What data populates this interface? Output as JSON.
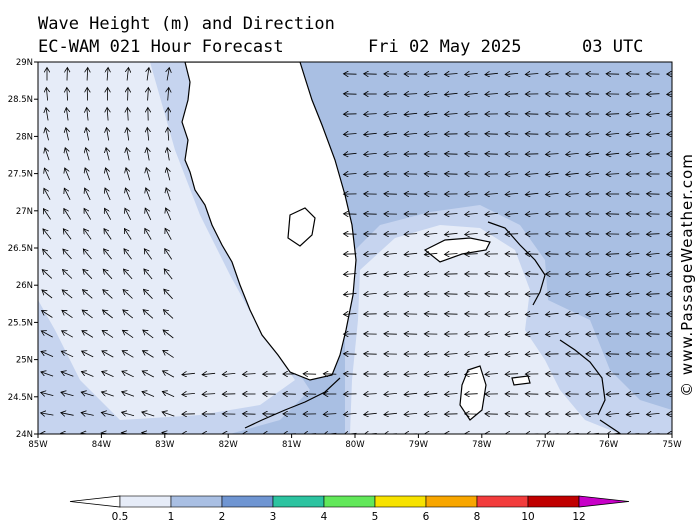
{
  "header": {
    "line1": "Wave Height (m) and Direction",
    "model": "EC-WAM 021 Hour Forecast",
    "date": "Fri 02 May 2025",
    "time": "03 UTC"
  },
  "credit": "© www.PassageWeather.com",
  "map": {
    "lat_ticks": [
      "29N",
      "28.5N",
      "28N",
      "27.5N",
      "27N",
      "26.5N",
      "26N",
      "25.5N",
      "25N",
      "24.5N",
      "24N"
    ],
    "lon_ticks": [
      "85W",
      "84W",
      "83W",
      "82W",
      "81W",
      "80W",
      "79W",
      "78W",
      "77W",
      "76W",
      "75W"
    ],
    "lat_range": [
      24,
      29
    ],
    "lon_range": [
      -85,
      -75
    ],
    "colors": {
      "land": "#ffffff",
      "wave_0_5": "#e6ecf8",
      "wave_0_5_1": "#c6d4ef",
      "wave_1_2": "#a9bfe3",
      "coast": "#000000"
    },
    "arrows": "wave direction vectors on regular grid"
  },
  "legend": {
    "labels": [
      "0.5",
      "1",
      "2",
      "3",
      "4",
      "5",
      "6",
      "8",
      "10",
      "12"
    ],
    "colors": [
      "#ffffff",
      "#e6ecf8",
      "#a9bfe3",
      "#6f95d2",
      "#2cc3a0",
      "#62e85a",
      "#f7e200",
      "#f8a600",
      "#f23c3c",
      "#c00000",
      "#c800c8"
    ]
  }
}
